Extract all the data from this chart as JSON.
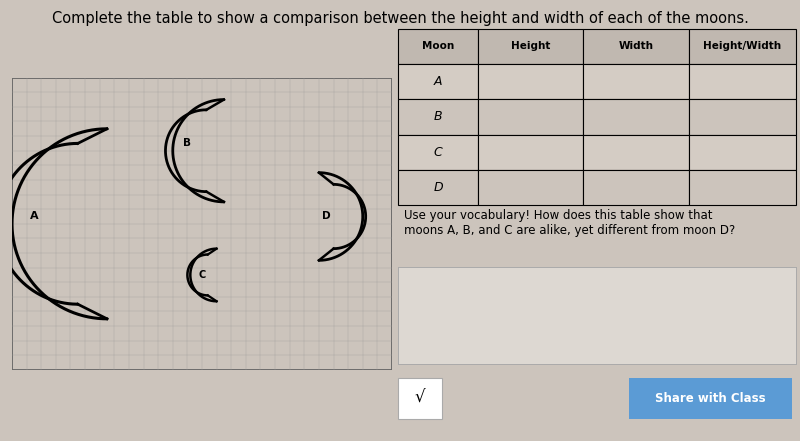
{
  "title": "Complete the table to show a comparison between the height and width of each of the moons.",
  "title_fontsize": 10.5,
  "bg_color": "#ccc4bc",
  "grid_color": "#999999",
  "table_headers": [
    "Moon",
    "Height",
    "Width",
    "Height/Width"
  ],
  "table_rows": [
    "A",
    "B",
    "C",
    "D"
  ],
  "vocab_text": "Use your vocabulary! How does this table show that\nmoons A, B, and C are alike, yet different from moon D?",
  "share_button_text": "Share with Class",
  "share_button_color": "#5b9bd5",
  "answer_box_color": "#ddd8d2",
  "sqrt_symbol": "√",
  "header_bg": "#c0b8b0",
  "row_bg": "#ccc4bc",
  "cell_bg_alt": "#d4ccc4",
  "table_border": "#888888"
}
